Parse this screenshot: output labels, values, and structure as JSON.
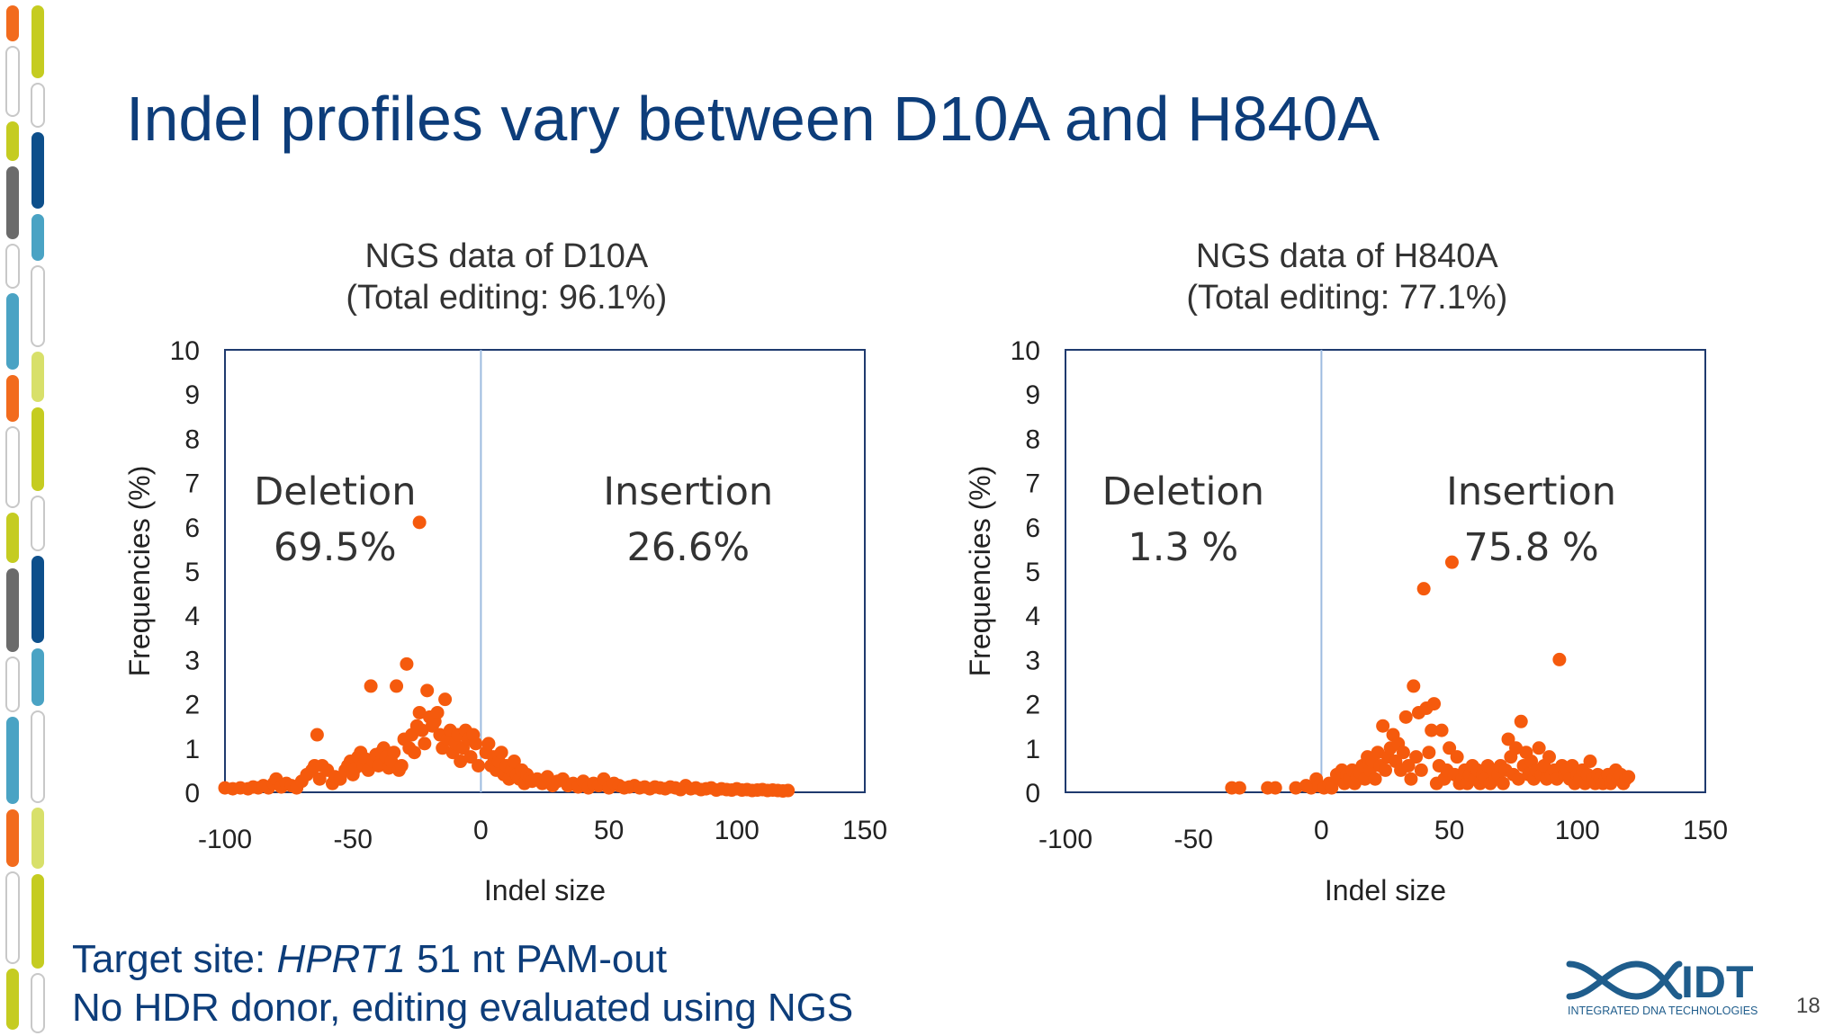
{
  "slide": {
    "title": "Indel profiles vary between D10A and H840A",
    "page_number": "18",
    "footnote": {
      "line1_prefix": "Target site: ",
      "line1_gene": "HPRT1",
      "line1_suffix": " 51 nt PAM-out",
      "line2": "No HDR donor, editing evaluated using NGS"
    },
    "logo": {
      "text": "IDT",
      "subtext": "INTEGRATED DNA TECHNOLOGIES",
      "color": "#1f5d8c"
    }
  },
  "colors": {
    "title": "#0d3d7a",
    "points": "#f55a0d",
    "frame": "#1f3a6e",
    "zero_line": "#9dbbe0"
  },
  "chart_data": [
    {
      "type": "scatter",
      "title_lines": [
        "NGS data of D10A",
        "(Total editing: 96.1%)"
      ],
      "xlabel": "Indel size",
      "ylabel": "Frequencies (%)",
      "xlim": [
        -100,
        150
      ],
      "ylim": [
        0,
        10
      ],
      "xticks": [
        -100,
        -50,
        0,
        50,
        100,
        150
      ],
      "xtick_labels": [
        "-100",
        "-50",
        "0",
        "50",
        "100",
        "150"
      ],
      "yticks": [
        0,
        1,
        2,
        3,
        4,
        5,
        6,
        7,
        8,
        9,
        10
      ],
      "ytick_labels": [
        "0",
        "1",
        "2",
        "3",
        "4",
        "5",
        "6",
        "7",
        "8",
        "9",
        "10"
      ],
      "zero_line_x": 0,
      "regions": [
        {
          "label": "Deletion",
          "value": "69.5%",
          "x": -57,
          "y": 6.5
        },
        {
          "label": "Insertion",
          "value": "26.6%",
          "x": 81,
          "y": 6.5
        }
      ],
      "points": [
        [
          -100,
          0.1
        ],
        [
          -97,
          0.08
        ],
        [
          -94,
          0.1
        ],
        [
          -91,
          0.08
        ],
        [
          -89,
          0.12
        ],
        [
          -87,
          0.1
        ],
        [
          -85,
          0.15
        ],
        [
          -83,
          0.1
        ],
        [
          -81,
          0.2
        ],
        [
          -80,
          0.3
        ],
        [
          -78,
          0.12
        ],
        [
          -76,
          0.2
        ],
        [
          -74,
          0.15
        ],
        [
          -72,
          0.1
        ],
        [
          -70,
          0.25
        ],
        [
          -68,
          0.4
        ],
        [
          -66,
          0.5
        ],
        [
          -65,
          0.6
        ],
        [
          -64,
          1.3
        ],
        [
          -63,
          0.3
        ],
        [
          -62,
          0.6
        ],
        [
          -60,
          0.5
        ],
        [
          -58,
          0.2
        ],
        [
          -57,
          0.35
        ],
        [
          -55,
          0.3
        ],
        [
          -53,
          0.5
        ],
        [
          -52,
          0.6
        ],
        [
          -51,
          0.7
        ],
        [
          -50,
          0.4
        ],
        [
          -49,
          0.55
        ],
        [
          -48,
          0.8
        ],
        [
          -47,
          0.9
        ],
        [
          -46,
          0.6
        ],
        [
          -45,
          0.75
        ],
        [
          -44,
          0.5
        ],
        [
          -43,
          2.4
        ],
        [
          -42,
          0.7
        ],
        [
          -41,
          0.85
        ],
        [
          -40,
          0.6
        ],
        [
          -39,
          0.9
        ],
        [
          -38,
          1.0
        ],
        [
          -37,
          0.8
        ],
        [
          -36,
          0.55
        ],
        [
          -35,
          0.7
        ],
        [
          -34,
          0.9
        ],
        [
          -33,
          2.4
        ],
        [
          -32,
          0.5
        ],
        [
          -31,
          0.6
        ],
        [
          -30,
          1.2
        ],
        [
          -29,
          2.9
        ],
        [
          -28,
          1.0
        ],
        [
          -27,
          1.3
        ],
        [
          -26,
          0.9
        ],
        [
          -25,
          1.5
        ],
        [
          -24,
          1.8
        ],
        [
          -23,
          1.4
        ],
        [
          -22,
          1.1
        ],
        [
          -21,
          2.3
        ],
        [
          -20,
          1.7
        ],
        [
          -19,
          1.5
        ],
        [
          -18,
          1.6
        ],
        [
          -17,
          1.8
        ],
        [
          -16,
          1.3
        ],
        [
          -15,
          1.0
        ],
        [
          -14,
          2.1
        ],
        [
          -13,
          1.2
        ],
        [
          -12,
          1.4
        ],
        [
          -11,
          0.9
        ],
        [
          -10,
          1.1
        ],
        [
          -9,
          1.3
        ],
        [
          -8,
          0.7
        ],
        [
          -7,
          1.0
        ],
        [
          -6,
          1.4
        ],
        [
          -5,
          1.2
        ],
        [
          -4,
          0.8
        ],
        [
          -3,
          1.3
        ],
        [
          -2,
          1.1
        ],
        [
          -1,
          0.6
        ],
        [
          -24,
          6.1
        ],
        [
          2,
          0.9
        ],
        [
          3,
          1.1
        ],
        [
          4,
          0.6
        ],
        [
          5,
          0.8
        ],
        [
          6,
          0.5
        ],
        [
          7,
          0.7
        ],
        [
          8,
          0.9
        ],
        [
          9,
          0.4
        ],
        [
          10,
          0.6
        ],
        [
          11,
          0.3
        ],
        [
          12,
          0.5
        ],
        [
          13,
          0.7
        ],
        [
          14,
          0.4
        ],
        [
          15,
          0.3
        ],
        [
          16,
          0.5
        ],
        [
          17,
          0.2
        ],
        [
          18,
          0.4
        ],
        [
          19,
          0.3
        ],
        [
          20,
          0.25
        ],
        [
          22,
          0.3
        ],
        [
          24,
          0.2
        ],
        [
          26,
          0.35
        ],
        [
          28,
          0.15
        ],
        [
          30,
          0.25
        ],
        [
          32,
          0.3
        ],
        [
          34,
          0.15
        ],
        [
          36,
          0.2
        ],
        [
          38,
          0.12
        ],
        [
          40,
          0.25
        ],
        [
          42,
          0.1
        ],
        [
          44,
          0.2
        ],
        [
          46,
          0.15
        ],
        [
          48,
          0.3
        ],
        [
          50,
          0.1
        ],
        [
          52,
          0.2
        ],
        [
          54,
          0.15
        ],
        [
          56,
          0.1
        ],
        [
          58,
          0.12
        ],
        [
          60,
          0.15
        ],
        [
          62,
          0.1
        ],
        [
          64,
          0.12
        ],
        [
          66,
          0.08
        ],
        [
          68,
          0.12
        ],
        [
          70,
          0.1
        ],
        [
          72,
          0.08
        ],
        [
          74,
          0.12
        ],
        [
          76,
          0.1
        ],
        [
          78,
          0.06
        ],
        [
          80,
          0.15
        ],
        [
          82,
          0.08
        ],
        [
          84,
          0.1
        ],
        [
          86,
          0.06
        ],
        [
          88,
          0.08
        ],
        [
          90,
          0.1
        ],
        [
          92,
          0.05
        ],
        [
          94,
          0.08
        ],
        [
          96,
          0.06
        ],
        [
          98,
          0.05
        ],
        [
          100,
          0.08
        ],
        [
          102,
          0.05
        ],
        [
          104,
          0.06
        ],
        [
          106,
          0.04
        ],
        [
          108,
          0.05
        ],
        [
          110,
          0.06
        ],
        [
          112,
          0.04
        ],
        [
          114,
          0.05
        ],
        [
          116,
          0.04
        ],
        [
          118,
          0.03
        ],
        [
          120,
          0.04
        ]
      ]
    },
    {
      "type": "scatter",
      "title_lines": [
        "NGS data of H840A",
        "(Total editing: 77.1%)"
      ],
      "xlabel": "Indel size",
      "ylabel": "Frequencies (%)",
      "xlim": [
        -100,
        150
      ],
      "ylim": [
        0,
        10
      ],
      "xticks": [
        -100,
        -50,
        0,
        50,
        100,
        150
      ],
      "xtick_labels": [
        "-100",
        "-50",
        "0",
        "50",
        "100",
        "150"
      ],
      "yticks": [
        0,
        1,
        2,
        3,
        4,
        5,
        6,
        7,
        8,
        9,
        10
      ],
      "ytick_labels": [
        "0",
        "1",
        "2",
        "3",
        "4",
        "5",
        "6",
        "7",
        "8",
        "9",
        "10"
      ],
      "zero_line_x": 0,
      "regions": [
        {
          "label": "Deletion",
          "value": "1.3 %",
          "x": -54,
          "y": 6.5
        },
        {
          "label": "Insertion",
          "value": "75.8 %",
          "x": 82,
          "y": 6.5
        }
      ],
      "points": [
        [
          -35,
          0.1
        ],
        [
          -32,
          0.1
        ],
        [
          -21,
          0.1
        ],
        [
          -18,
          0.1
        ],
        [
          -10,
          0.1
        ],
        [
          -6,
          0.15
        ],
        [
          -4,
          0.1
        ],
        [
          -2,
          0.3
        ],
        [
          -1,
          0.15
        ],
        [
          1,
          0.1
        ],
        [
          3,
          0.2
        ],
        [
          4,
          0.1
        ],
        [
          6,
          0.4
        ],
        [
          7,
          0.3
        ],
        [
          8,
          0.5
        ],
        [
          9,
          0.2
        ],
        [
          10,
          0.4
        ],
        [
          11,
          0.3
        ],
        [
          12,
          0.5
        ],
        [
          13,
          0.2
        ],
        [
          14,
          0.35
        ],
        [
          15,
          0.45
        ],
        [
          16,
          0.6
        ],
        [
          17,
          0.3
        ],
        [
          18,
          0.8
        ],
        [
          19,
          0.5
        ],
        [
          20,
          0.7
        ],
        [
          21,
          0.3
        ],
        [
          22,
          0.9
        ],
        [
          23,
          0.6
        ],
        [
          24,
          1.5
        ],
        [
          25,
          0.5
        ],
        [
          26,
          0.8
        ],
        [
          27,
          1.0
        ],
        [
          28,
          1.3
        ],
        [
          29,
          0.7
        ],
        [
          30,
          1.1
        ],
        [
          31,
          0.5
        ],
        [
          32,
          0.9
        ],
        [
          33,
          1.7
        ],
        [
          34,
          0.6
        ],
        [
          35,
          0.3
        ],
        [
          36,
          2.4
        ],
        [
          37,
          0.8
        ],
        [
          38,
          1.8
        ],
        [
          39,
          0.5
        ],
        [
          40,
          4.6
        ],
        [
          41,
          1.9
        ],
        [
          42,
          0.9
        ],
        [
          43,
          1.4
        ],
        [
          44,
          2.0
        ],
        [
          45,
          0.2
        ],
        [
          46,
          0.6
        ],
        [
          47,
          1.4
        ],
        [
          48,
          0.3
        ],
        [
          49,
          0.5
        ],
        [
          50,
          1.0
        ],
        [
          51,
          5.2
        ],
        [
          52,
          0.4
        ],
        [
          53,
          0.8
        ],
        [
          54,
          0.2
        ],
        [
          55,
          0.3
        ],
        [
          56,
          0.5
        ],
        [
          57,
          0.2
        ],
        [
          58,
          0.4
        ],
        [
          59,
          0.6
        ],
        [
          60,
          0.3
        ],
        [
          61,
          0.5
        ],
        [
          62,
          0.2
        ],
        [
          63,
          0.4
        ],
        [
          64,
          0.3
        ],
        [
          65,
          0.6
        ],
        [
          66,
          0.2
        ],
        [
          67,
          0.5
        ],
        [
          68,
          0.3
        ],
        [
          69,
          0.4
        ],
        [
          70,
          0.6
        ],
        [
          71,
          0.2
        ],
        [
          72,
          0.5
        ],
        [
          73,
          1.2
        ],
        [
          74,
          0.8
        ],
        [
          75,
          0.4
        ],
        [
          76,
          1.0
        ],
        [
          77,
          0.3
        ],
        [
          78,
          1.6
        ],
        [
          79,
          0.6
        ],
        [
          80,
          0.9
        ],
        [
          81,
          0.4
        ],
        [
          82,
          0.7
        ],
        [
          83,
          0.3
        ],
        [
          84,
          0.5
        ],
        [
          85,
          1.0
        ],
        [
          86,
          0.4
        ],
        [
          87,
          0.6
        ],
        [
          88,
          0.3
        ],
        [
          89,
          0.8
        ],
        [
          90,
          0.4
        ],
        [
          91,
          0.5
        ],
        [
          92,
          0.3
        ],
        [
          93,
          3.0
        ],
        [
          94,
          0.6
        ],
        [
          95,
          0.4
        ],
        [
          96,
          0.5
        ],
        [
          97,
          0.3
        ],
        [
          98,
          0.6
        ],
        [
          99,
          0.2
        ],
        [
          100,
          0.4
        ],
        [
          101,
          0.3
        ],
        [
          102,
          0.5
        ],
        [
          103,
          0.2
        ],
        [
          104,
          0.4
        ],
        [
          105,
          0.7
        ],
        [
          106,
          0.3
        ],
        [
          107,
          0.2
        ],
        [
          108,
          0.4
        ],
        [
          109,
          0.3
        ],
        [
          110,
          0.2
        ],
        [
          111,
          0.3
        ],
        [
          112,
          0.4
        ],
        [
          113,
          0.2
        ],
        [
          114,
          0.3
        ],
        [
          115,
          0.5
        ],
        [
          116,
          0.3
        ],
        [
          117,
          0.4
        ],
        [
          118,
          0.2
        ],
        [
          119,
          0.3
        ],
        [
          120,
          0.35
        ]
      ]
    }
  ]
}
